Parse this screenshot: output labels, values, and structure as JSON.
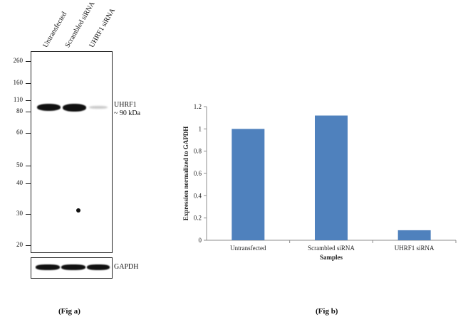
{
  "western_blot": {
    "lane_labels": [
      "Untransfected",
      "Scrambled siRNA",
      "UHRF1 siRNA"
    ],
    "markers": [
      "260",
      "160",
      "110",
      "80",
      "60",
      "50",
      "40",
      "30",
      "20"
    ],
    "marker_values": [
      260,
      160,
      110,
      80,
      60,
      50,
      40,
      30,
      20
    ],
    "band_label_line1": "UHRF1",
    "band_label_line2": "~ 90 kDa",
    "loading_control_label": "GAPDH",
    "band_intensity": [
      1.0,
      1.0,
      0.1
    ]
  },
  "fig_a_label": "(Fig a)",
  "fig_b_label": "(Fig b)",
  "chart_data": {
    "type": "bar",
    "categories": [
      "Untransfected",
      "Scrambled siRNA",
      "UHRF1 siRNA"
    ],
    "values": [
      1.0,
      1.12,
      0.09
    ],
    "title": "",
    "xlabel": "Samples",
    "ylabel": "Expression normalized to GAPDH",
    "ylim": [
      0,
      1.2
    ],
    "yticks": [
      "0",
      "0.2",
      "0.4",
      "0.6",
      "0.8",
      "1",
      "1.2"
    ],
    "bar_color": "#4f81bd",
    "grid": false,
    "legend": "none"
  }
}
